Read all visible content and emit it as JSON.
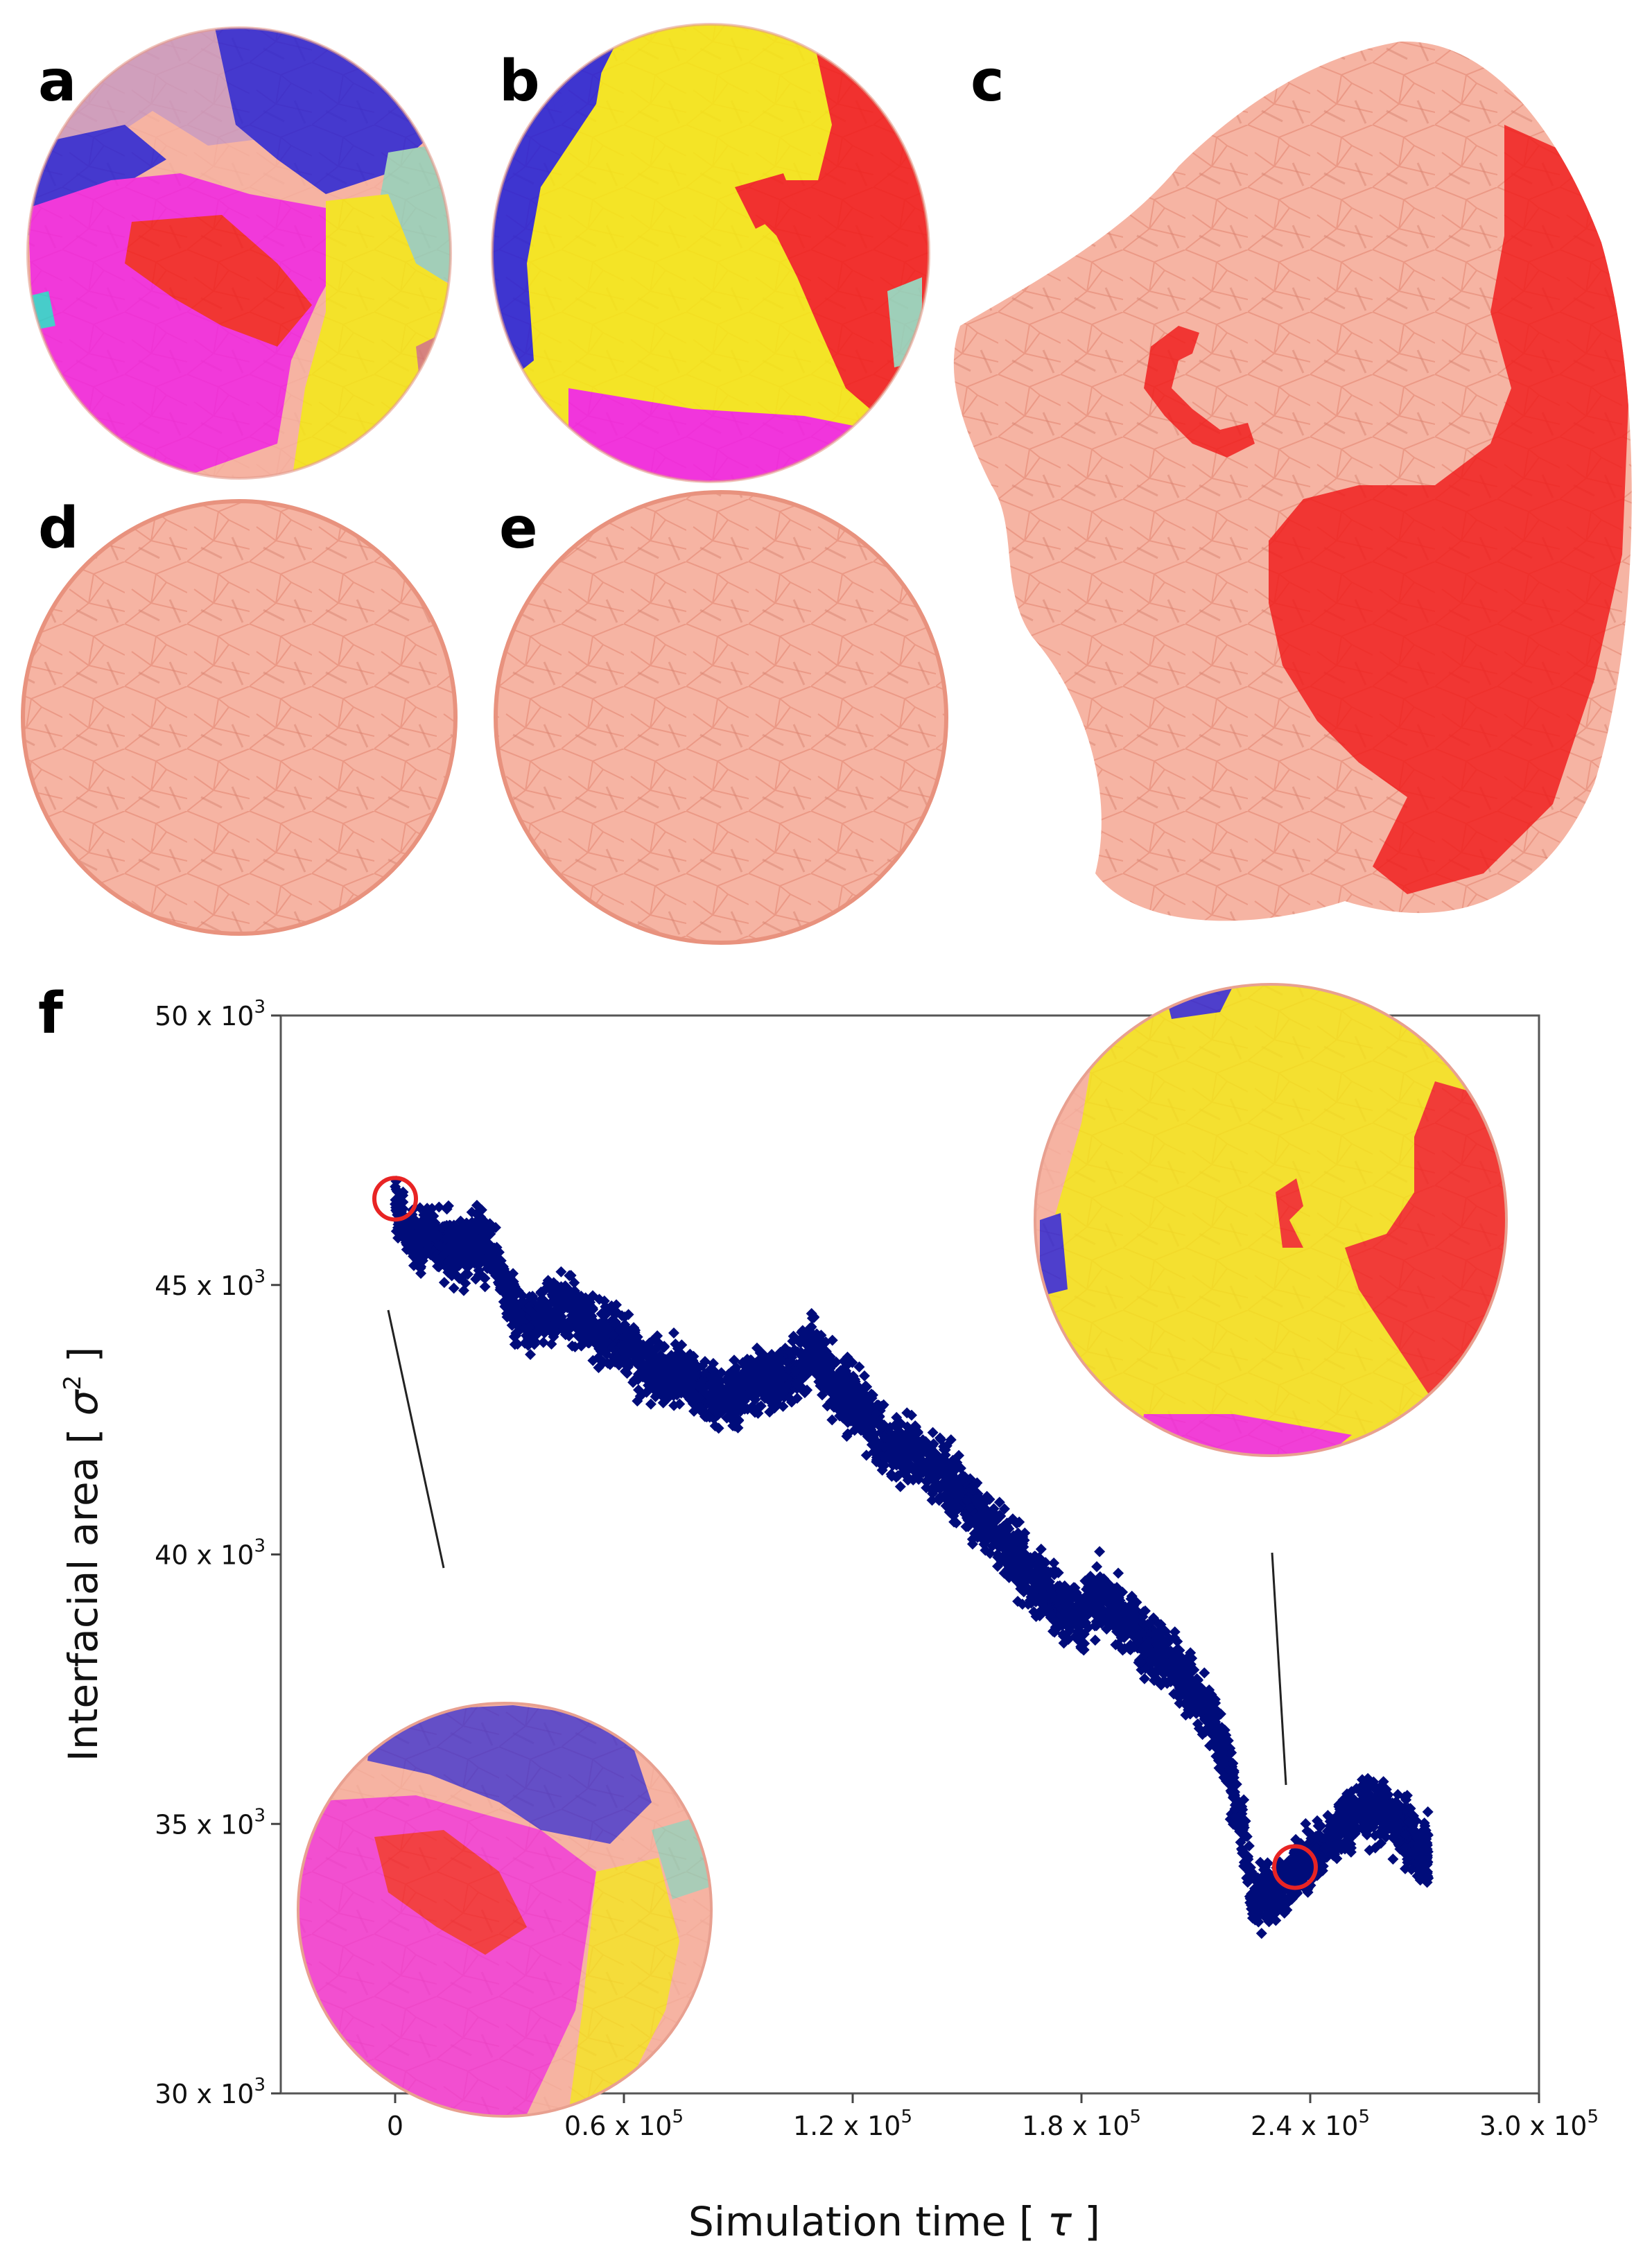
{
  "panels": {
    "a": "a",
    "b": "b",
    "c": "c",
    "d": "d",
    "e": "e",
    "f": "f"
  },
  "colors": {
    "blue": "#1e1ed8",
    "purple_pink": "#c89ac2",
    "magenta": "#f01ee6",
    "red": "#f01a1a",
    "yellow": "#f4ec10",
    "teal": "#8fd4bd",
    "cyan": "#20d2d2",
    "salmon": "#f6b3a2",
    "salmon_edge": "#e9907c",
    "navy": "#000c7a",
    "highlight": "#e82424"
  },
  "chart_data": {
    "type": "scatter",
    "title": "",
    "xlabel_prefix": "Simulation time [ ",
    "xlabel_symbol": "τ",
    "xlabel_suffix": " ]",
    "ylabel_prefix": "Interfacial area [ ",
    "ylabel_symbol": "σ",
    "ylabel_sup": "2",
    "ylabel_suffix": " ]",
    "xlim": [
      -30000,
      300000
    ],
    "ylim": [
      30000,
      50000
    ],
    "x_ticks": [
      {
        "value": 0,
        "label": "0",
        "exp": ""
      },
      {
        "value": 60000,
        "label": "0.6 x 10",
        "exp": "5"
      },
      {
        "value": 120000,
        "label": "1.2 x 10",
        "exp": "5"
      },
      {
        "value": 180000,
        "label": "1.8 x 10",
        "exp": "5"
      },
      {
        "value": 240000,
        "label": "2.4 x 10",
        "exp": "5"
      },
      {
        "value": 300000,
        "label": "3.0 x 10",
        "exp": "5"
      }
    ],
    "y_ticks": [
      {
        "value": 30000,
        "label": "30 x 10",
        "exp": "3"
      },
      {
        "value": 35000,
        "label": "35 x 10",
        "exp": "3"
      },
      {
        "value": 40000,
        "label": "40 x 10",
        "exp": "3"
      },
      {
        "value": 45000,
        "label": "45 x 10",
        "exp": "3"
      },
      {
        "value": 50000,
        "label": "50 x 10",
        "exp": "3"
      }
    ],
    "series": [
      {
        "name": "interfacial area",
        "marker": "diamond",
        "x": [
          0,
          5000,
          10000,
          15000,
          20000,
          25000,
          30000,
          35000,
          40000,
          45000,
          50000,
          55000,
          60000,
          65000,
          70000,
          75000,
          80000,
          85000,
          90000,
          95000,
          100000,
          105000,
          110000,
          115000,
          120000,
          125000,
          130000,
          135000,
          140000,
          145000,
          150000,
          155000,
          160000,
          165000,
          170000,
          175000,
          180000,
          185000,
          190000,
          195000,
          200000,
          205000,
          210000,
          215000,
          220000,
          225000,
          230000,
          235000,
          240000,
          245000,
          250000,
          255000,
          260000,
          265000,
          268000
        ],
        "y": [
          46500,
          45800,
          45900,
          45600,
          45800,
          45700,
          44700,
          44200,
          44500,
          44600,
          44300,
          44100,
          43900,
          43500,
          43400,
          43300,
          43100,
          42900,
          43000,
          43300,
          43200,
          43400,
          43800,
          43100,
          43000,
          42500,
          42000,
          41900,
          41700,
          41400,
          41000,
          40600,
          40200,
          39700,
          39400,
          39000,
          38800,
          39300,
          39000,
          38500,
          38100,
          37900,
          37400,
          36900,
          35700,
          33600,
          33700,
          34000,
          34300,
          34800,
          35100,
          35400,
          35200,
          34800,
          34500
        ],
        "spread": [
          800,
          900,
          900,
          1000,
          900,
          800,
          800,
          800,
          800,
          800,
          800,
          800,
          800,
          800,
          800,
          800,
          800,
          800,
          800,
          800,
          900,
          900,
          900,
          900,
          900,
          900,
          900,
          900,
          900,
          900,
          900,
          900,
          900,
          900,
          900,
          900,
          900,
          900,
          900,
          900,
          900,
          900,
          900,
          900,
          900,
          900,
          800,
          800,
          800,
          800,
          800,
          900,
          900,
          900,
          900
        ]
      }
    ],
    "highlights": [
      {
        "x": 0,
        "y": 46600
      },
      {
        "x": 236000,
        "y": 34200
      }
    ],
    "grid": false,
    "legend": "none"
  }
}
